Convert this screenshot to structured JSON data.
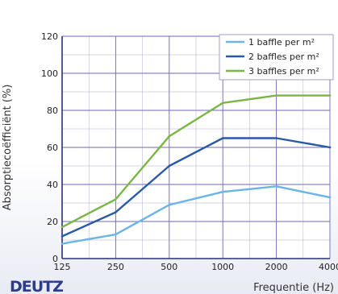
{
  "chart_data": {
    "type": "line",
    "title": "",
    "xlabel": "Frequentie (Hz)",
    "ylabel": "Absorptiecoëfficiënt (%)",
    "x": [
      125,
      250,
      500,
      1000,
      2000,
      4000
    ],
    "x_tick_labels": [
      "125",
      "250",
      "500",
      "1000",
      "2000",
      "4000"
    ],
    "x_scale": "log",
    "ylim": [
      0,
      120
    ],
    "y_ticks": [
      0,
      20,
      40,
      60,
      80,
      100,
      120
    ],
    "grid": true,
    "legend_position": "top-right",
    "series": [
      {
        "name": "1 baffle per m²",
        "color": "#6bb5e6",
        "values": [
          8,
          13,
          29,
          36,
          39,
          33
        ]
      },
      {
        "name": "2 baffles per m²",
        "color": "#2a5aa6",
        "values": [
          12,
          25,
          50,
          65,
          65,
          60
        ]
      },
      {
        "name": "3 baffles per m²",
        "color": "#79b644",
        "values": [
          17,
          32,
          66,
          84,
          88,
          88
        ]
      }
    ]
  },
  "branding": {
    "logo_text": "DEUTZ"
  },
  "colors": {
    "grid": "#6f68b0",
    "axis": "#2a2f7a",
    "plot_background": "#ffffff"
  }
}
